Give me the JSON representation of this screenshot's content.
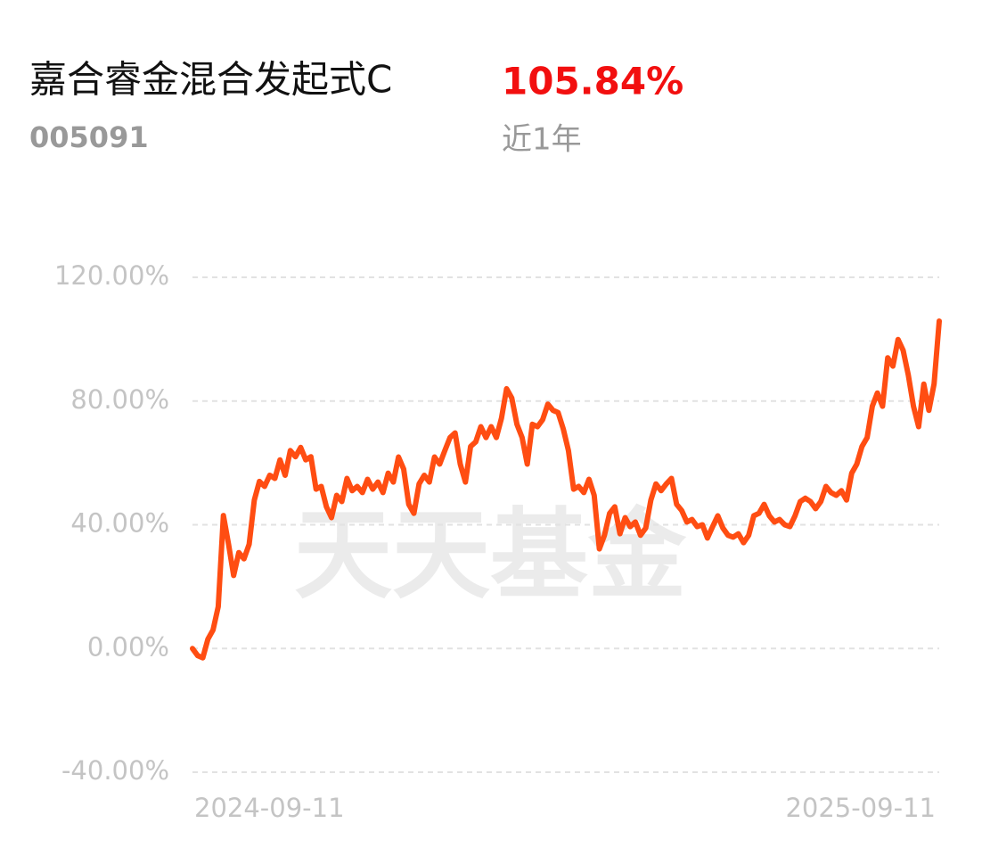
{
  "header": {
    "title": "嘉合睿金混合发起式C",
    "code": "005091",
    "return": "105.84%",
    "period": "近1年"
  },
  "watermark": "天天基金",
  "chart_data": {
    "type": "line",
    "color": "#ff4d12",
    "grid": true,
    "ylim": [
      -40,
      120
    ],
    "yticks": [
      {
        "value": 120,
        "label": "120.00%"
      },
      {
        "value": 80,
        "label": "80.00%"
      },
      {
        "value": 40,
        "label": "40.00%"
      },
      {
        "value": 0,
        "label": "0.00%"
      },
      {
        "value": -40,
        "label": "-40.00%"
      }
    ],
    "categories": [
      "2024-09-11",
      null,
      null,
      null,
      null,
      null,
      null,
      null,
      null,
      null,
      null,
      null,
      null,
      null,
      null,
      null,
      null,
      null,
      null,
      null,
      null,
      null,
      null,
      null,
      null,
      null,
      null,
      null,
      null,
      null,
      null,
      null,
      null,
      null,
      null,
      null,
      null,
      null,
      null,
      null,
      null,
      null,
      null,
      null,
      null,
      null,
      null,
      null,
      null,
      null,
      null,
      null,
      null,
      null,
      null,
      null,
      null,
      null,
      null,
      null,
      null,
      null,
      null,
      null,
      null,
      null,
      null,
      null,
      null,
      null,
      null,
      null,
      null,
      null,
      null,
      null,
      null,
      null,
      null,
      null,
      null,
      null,
      null,
      null,
      null,
      null,
      null,
      null,
      null,
      null,
      null,
      null,
      null,
      null,
      null,
      null,
      null,
      null,
      null,
      null,
      null,
      null,
      null,
      null,
      null,
      null,
      null,
      null,
      null,
      null,
      null,
      null,
      null,
      null,
      null,
      null,
      null,
      null,
      null,
      null,
      null,
      null,
      null,
      null,
      null,
      null,
      null,
      null,
      null,
      null,
      null,
      null,
      null,
      null,
      null,
      null,
      null,
      null,
      null,
      null,
      null,
      null,
      null,
      null,
      null,
      "2025-09-11"
    ],
    "values": [
      0,
      -2.3,
      -3,
      3,
      6,
      13.5,
      43,
      33.7,
      23.6,
      31,
      29,
      33.7,
      48,
      54,
      52.4,
      56,
      55,
      61,
      56,
      64,
      62,
      65,
      61,
      62,
      51.5,
      52.4,
      45.8,
      42.3,
      49.5,
      47.5,
      55,
      51,
      52.4,
      50.4,
      54.7,
      51.5,
      53.8,
      50.4,
      56.7,
      53.8,
      61.9,
      58,
      46.6,
      43.7,
      53.2,
      56,
      53.8,
      61.9,
      59.6,
      64,
      68.2,
      69.7,
      59.6,
      53.8,
      65.3,
      66.8,
      71.7,
      68.2,
      71.7,
      68.2,
      74.5,
      84,
      81,
      72.5,
      68.2,
      59.6,
      72.5,
      71.7,
      74,
      79,
      77,
      76.3,
      71,
      64,
      51.5,
      52.4,
      50.4,
      54.7,
      49.5,
      32.2,
      36.6,
      43.7,
      45.8,
      37.1,
      42.3,
      39.4,
      40.9,
      36.6,
      38.9,
      48,
      53.2,
      51,
      53.2,
      55,
      46.6,
      44.6,
      40.9,
      41.7,
      39.4,
      40,
      35.7,
      39.4,
      42.9,
      38.9,
      36.6,
      36,
      37.1,
      34.2,
      36.6,
      42.9,
      43.7,
      46.6,
      42.9,
      40.9,
      41.7,
      40,
      39.4,
      42.9,
      47.5,
      48.6,
      47.5,
      45.2,
      47.5,
      52.4,
      50.4,
      49.5,
      51,
      48,
      56.7,
      59.6,
      65.3,
      68.2,
      78.3,
      82.6,
      78.3,
      94,
      91.3,
      99.9,
      96.4,
      88.4,
      78.3,
      71.7,
      85.5,
      77,
      85.5,
      105.84
    ]
  }
}
